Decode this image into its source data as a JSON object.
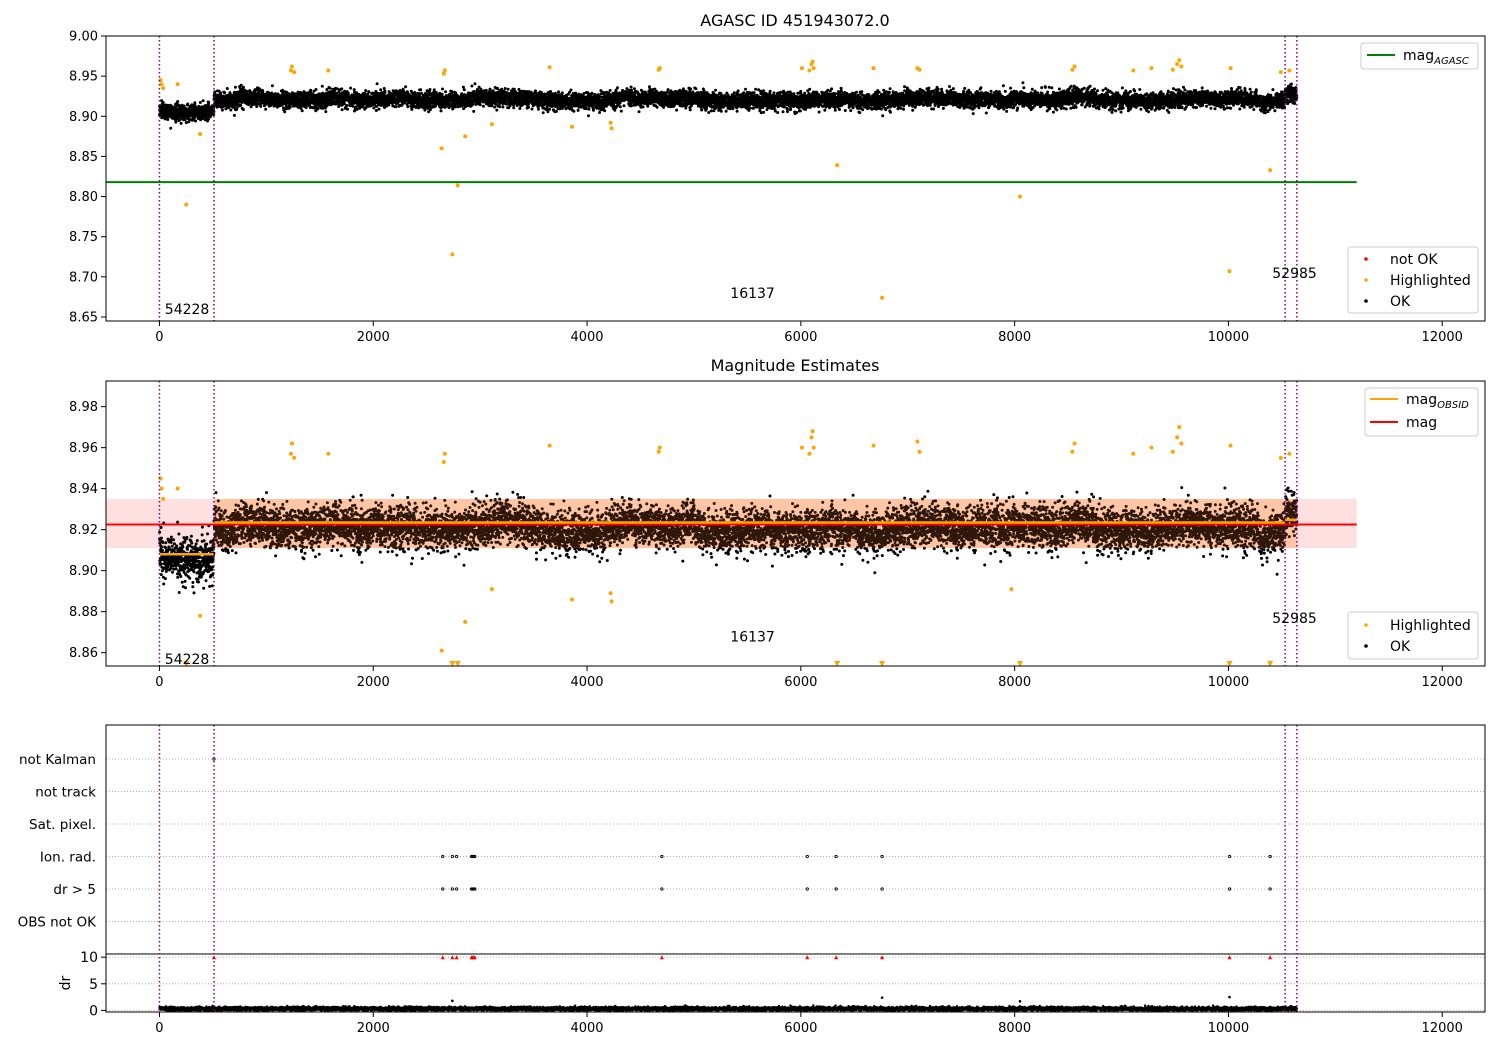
{
  "chart_data": [
    {
      "type": "scatter",
      "title": "AGASC ID 451943072.0",
      "xlabel": "",
      "ylabel": "",
      "xlim": [
        -500,
        12400
      ],
      "ylim": [
        8.645,
        9.0
      ],
      "xticks": [
        0,
        2000,
        4000,
        6000,
        8000,
        10000,
        12000
      ],
      "yticks": [
        8.65,
        8.7,
        8.75,
        8.8,
        8.85,
        8.9,
        8.95,
        9.0
      ],
      "x_tick_labels": [
        "0",
        "2000",
        "4000",
        "6000",
        "8000",
        "10000",
        "12000"
      ],
      "y_tick_labels": [
        "8.65",
        "8.70",
        "8.75",
        "8.80",
        "8.85",
        "8.90",
        "8.95",
        "9.00"
      ],
      "grid": false,
      "legend_placement": "top-right and lower-right",
      "obsid_boundaries": [
        0,
        510,
        10530,
        10640
      ],
      "annotations": [
        {
          "text": "54228",
          "x": 50,
          "y": 8.66
        },
        {
          "text": "16137",
          "x": 5340,
          "y": 8.68
        },
        {
          "text": "52985",
          "x": 10410,
          "y": 8.705
        }
      ],
      "reference_lines": [
        {
          "name": "mag",
          "subscript": "AGASC",
          "y": 8.818,
          "x_range": [
            -500,
            11200
          ],
          "color": "#008000"
        }
      ],
      "legends": [
        {
          "entries": [
            {
              "label": "mag",
              "subscript": "AGASC",
              "color": "#008000",
              "marker": "line"
            }
          ]
        },
        {
          "entries": [
            {
              "label": "not OK",
              "color": "#ff0000",
              "marker": "dot"
            },
            {
              "label": "Highlighted",
              "color": "#ffa500",
              "marker": "dot"
            },
            {
              "label": "OK",
              "color": "#000000",
              "marker": "dot"
            }
          ]
        }
      ],
      "series": [
        {
          "name": "OK",
          "color": "#000000",
          "style": "dense band, ~10640 points",
          "x_range": [
            0,
            10640
          ],
          "segments": [
            {
              "x_range": [
                0,
                510
              ],
              "mean": 8.905,
              "spread": 0.012
            },
            {
              "x_range": [
                510,
                10530
              ],
              "mean": 8.921,
              "spread": 0.012
            },
            {
              "x_range": [
                10530,
                10640
              ],
              "mean": 8.928,
              "spread": 0.012
            }
          ]
        },
        {
          "name": "Highlighted",
          "color": "#ffa500",
          "points": [
            [
              10,
              8.945
            ],
            [
              20,
              8.94
            ],
            [
              35,
              8.935
            ],
            [
              170,
              8.94
            ],
            [
              250,
              8.79
            ],
            [
              380,
              8.878
            ],
            [
              1230,
              8.957
            ],
            [
              1240,
              8.962
            ],
            [
              1260,
              8.955
            ],
            [
              1580,
              8.957
            ],
            [
              2640,
              8.86
            ],
            [
              2660,
              8.953
            ],
            [
              2670,
              8.957
            ],
            [
              2740,
              8.728
            ],
            [
              2790,
              8.814
            ],
            [
              2860,
              8.875
            ],
            [
              3110,
              8.89
            ],
            [
              3650,
              8.961
            ],
            [
              3860,
              8.887
            ],
            [
              4220,
              8.892
            ],
            [
              4230,
              8.885
            ],
            [
              4670,
              8.958
            ],
            [
              4680,
              8.96
            ],
            [
              6010,
              8.96
            ],
            [
              6080,
              8.957
            ],
            [
              6100,
              8.965
            ],
            [
              6110,
              8.968
            ],
            [
              6120,
              8.96
            ],
            [
              6340,
              8.839
            ],
            [
              6680,
              8.96
            ],
            [
              6760,
              8.674
            ],
            [
              7090,
              8.96
            ],
            [
              7110,
              8.958
            ],
            [
              8050,
              8.8
            ],
            [
              8540,
              8.958
            ],
            [
              8560,
              8.962
            ],
            [
              9110,
              8.957
            ],
            [
              9280,
              8.96
            ],
            [
              9480,
              8.958
            ],
            [
              9520,
              8.965
            ],
            [
              9540,
              8.97
            ],
            [
              9560,
              8.962
            ],
            [
              10010,
              8.707
            ],
            [
              10020,
              8.96
            ],
            [
              10390,
              8.833
            ],
            [
              10490,
              8.955
            ],
            [
              10570,
              8.957
            ]
          ]
        },
        {
          "name": "not OK",
          "color": "#ff0000",
          "points": []
        }
      ]
    },
    {
      "type": "scatter",
      "title": "Magnitude Estimates",
      "xlabel": "",
      "ylabel": "",
      "xlim": [
        -500,
        12400
      ],
      "ylim": [
        8.8535,
        8.9925
      ],
      "xticks": [
        0,
        2000,
        4000,
        6000,
        8000,
        10000,
        12000
      ],
      "yticks": [
        8.86,
        8.88,
        8.9,
        8.92,
        8.94,
        8.96,
        8.98
      ],
      "x_tick_labels": [
        "0",
        "2000",
        "4000",
        "6000",
        "8000",
        "10000",
        "12000"
      ],
      "y_tick_labels": [
        "8.86",
        "8.88",
        "8.90",
        "8.92",
        "8.94",
        "8.96",
        "8.98"
      ],
      "grid": false,
      "legend_placement": "top-right and lower-right",
      "obsid_boundaries": [
        0,
        510,
        10530,
        10640
      ],
      "annotations": [
        {
          "text": "54228",
          "x": 50,
          "y": 8.857
        },
        {
          "text": "16137",
          "x": 5340,
          "y": 8.868
        },
        {
          "text": "52985",
          "x": 10410,
          "y": 8.877
        }
      ],
      "bands": [
        {
          "y_range": [
            8.911,
            8.935
          ],
          "x_range": [
            -500,
            11200
          ],
          "color": "#ff0000",
          "opacity": 0.12
        },
        {
          "y_range": [
            8.911,
            8.935
          ],
          "x_range": [
            510,
            10640
          ],
          "color": "#ffa500",
          "opacity": 0.16
        }
      ],
      "reference_lines": [
        {
          "name": "mag",
          "y": 8.9225,
          "x_range": [
            -500,
            11200
          ],
          "color": "#ff0000"
        }
      ],
      "obsid_means": [
        {
          "x_range": [
            0,
            510
          ],
          "y": 8.908
        },
        {
          "x_range": [
            510,
            10530
          ],
          "y": 8.9235
        },
        {
          "x_range": [
            10530,
            10640
          ],
          "y": 8.9248
        }
      ],
      "legends": [
        {
          "entries": [
            {
              "label": "mag",
              "subscript": "OBSID",
              "color": "#ffa500",
              "marker": "line"
            },
            {
              "label": "mag",
              "subscript": "",
              "color": "#ff0000",
              "marker": "line"
            }
          ]
        },
        {
          "entries": [
            {
              "label": "Highlighted",
              "color": "#ffa500",
              "marker": "dot"
            },
            {
              "label": "OK",
              "color": "#000000",
              "marker": "dot"
            }
          ]
        }
      ],
      "clipped_markers_y": 8.8545,
      "series": [
        {
          "name": "OK",
          "color": "#000000",
          "style": "dense band, ~10640 points",
          "segments": [
            {
              "x_range": [
                0,
                510
              ],
              "mean": 8.905,
              "spread": 0.012
            },
            {
              "x_range": [
                510,
                10530
              ],
              "mean": 8.921,
              "spread": 0.012
            },
            {
              "x_range": [
                10530,
                10640
              ],
              "mean": 8.928,
              "spread": 0.012
            }
          ]
        },
        {
          "name": "Highlighted",
          "color": "#ffa500",
          "points": [
            [
              10,
              8.945
            ],
            [
              20,
              8.94
            ],
            [
              35,
              8.935
            ],
            [
              170,
              8.94
            ],
            [
              380,
              8.878
            ],
            [
              1230,
              8.957
            ],
            [
              1240,
              8.962
            ],
            [
              1260,
              8.955
            ],
            [
              1580,
              8.957
            ],
            [
              2640,
              8.861
            ],
            [
              2660,
              8.953
            ],
            [
              2670,
              8.957
            ],
            [
              2860,
              8.875
            ],
            [
              3110,
              8.891
            ],
            [
              3650,
              8.961
            ],
            [
              3860,
              8.886
            ],
            [
              4220,
              8.889
            ],
            [
              4230,
              8.885
            ],
            [
              4670,
              8.958
            ],
            [
              4680,
              8.96
            ],
            [
              6010,
              8.96
            ],
            [
              6080,
              8.957
            ],
            [
              6100,
              8.965
            ],
            [
              6110,
              8.968
            ],
            [
              6120,
              8.96
            ],
            [
              6680,
              8.961
            ],
            [
              7090,
              8.963
            ],
            [
              7110,
              8.958
            ],
            [
              7970,
              8.891
            ],
            [
              8540,
              8.958
            ],
            [
              8560,
              8.962
            ],
            [
              9110,
              8.957
            ],
            [
              9280,
              8.96
            ],
            [
              9480,
              8.958
            ],
            [
              9520,
              8.965
            ],
            [
              9540,
              8.97
            ],
            [
              9560,
              8.962
            ],
            [
              10020,
              8.961
            ],
            [
              10490,
              8.955
            ],
            [
              10570,
              8.957
            ]
          ],
          "clipped_x": [
            250,
            2740,
            2790,
            6340,
            6760,
            8050,
            10010,
            10390
          ]
        }
      ]
    },
    {
      "type": "scatter",
      "title": "",
      "xlabel": "",
      "ylabel": "dr",
      "xlim": [
        -500,
        12400
      ],
      "ylim": [
        -0.3,
        10.6
      ],
      "xticks": [
        0,
        2000,
        4000,
        6000,
        8000,
        10000,
        12000
      ],
      "x_tick_labels": [
        "0",
        "2000",
        "4000",
        "6000",
        "8000",
        "10000",
        "12000"
      ],
      "yticks": [
        0,
        5,
        10
      ],
      "y_tick_labels": [
        "0",
        "5",
        "10"
      ],
      "grid": true,
      "obsid_boundaries": [
        0,
        510,
        10530,
        10640
      ],
      "flag_rows": [
        "not Kalman",
        "not track",
        "Sat. pixel.",
        "Ion. rad.",
        "dr > 5",
        "OBS not OK"
      ],
      "flag_points": {
        "not Kalman": [
          510
        ],
        "not track": [],
        "Sat. pixel.": [],
        "Ion. rad.": [
          2650,
          2740,
          2780,
          2920,
          2930,
          2940,
          2950,
          4700,
          6060,
          6330,
          6760,
          10010,
          10390
        ],
        "dr > 5": [
          2650,
          2740,
          2780,
          2920,
          2930,
          2940,
          2950,
          4700,
          6060,
          6330,
          6760,
          10010,
          10390
        ],
        "OBS not OK": []
      },
      "series": [
        {
          "name": "dr",
          "color": "#000000",
          "style": "baseline ~0.3 with spread 0.3",
          "x_range": [
            0,
            10640
          ],
          "spikes": [
            [
              2740,
              1.8
            ],
            [
              6760,
              2.4
            ],
            [
              8050,
              1.7
            ],
            [
              10010,
              2.5
            ]
          ]
        },
        {
          "name": "dr > 10",
          "color": "#ff0000",
          "marker": "triangle",
          "y": 10,
          "points": [
            510,
            2650,
            2740,
            2780,
            2920,
            2930,
            2940,
            2950,
            4700,
            6060,
            6330,
            6760,
            10010,
            10390
          ]
        }
      ]
    }
  ]
}
